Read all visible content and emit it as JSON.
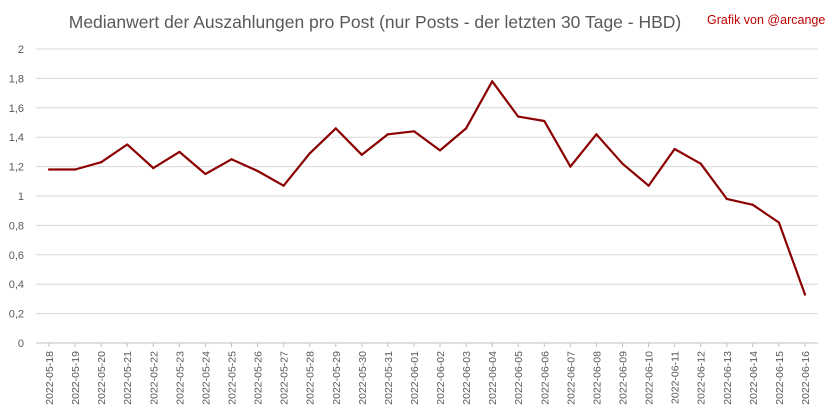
{
  "chart_data": {
    "type": "line",
    "title": "Medianwert der Auszahlungen pro Post (nur Posts - der letzten 30 Tage - HBD)",
    "credit": "Grafik von @arcange",
    "xlabel": "",
    "ylabel": "",
    "ylim": [
      0,
      2
    ],
    "yticks": [
      "0",
      "0,2",
      "0,4",
      "0,6",
      "0,8",
      "1",
      "1,2",
      "1,4",
      "1,6",
      "1,8",
      "2"
    ],
    "grid": true,
    "legend": "none",
    "categories": [
      "2022-05-18",
      "2022-05-19",
      "2022-05-20",
      "2022-05-21",
      "2022-05-22",
      "2022-05-23",
      "2022-05-24",
      "2022-05-25",
      "2022-05-26",
      "2022-05-27",
      "2022-05-28",
      "2022-05-29",
      "2022-05-30",
      "2022-05-31",
      "2022-06-01",
      "2022-06-02",
      "2022-06-03",
      "2022-06-04",
      "2022-06-05",
      "2022-06-06",
      "2022-06-07",
      "2022-06-08",
      "2022-06-09",
      "2022-06-10",
      "2022-06-11",
      "2022-06-12",
      "2022-06-13",
      "2022-06-14",
      "2022-06-15",
      "2022-06-16"
    ],
    "series": [
      {
        "color": "#8b0000",
        "values": [
          1.18,
          1.18,
          1.23,
          1.35,
          1.19,
          1.3,
          1.15,
          1.25,
          1.17,
          1.07,
          1.29,
          1.46,
          1.28,
          1.42,
          1.44,
          1.31,
          1.46,
          1.78,
          1.54,
          1.51,
          1.2,
          1.42,
          1.22,
          1.07,
          1.32,
          1.22,
          0.98,
          0.94,
          0.82,
          0.33
        ]
      }
    ]
  }
}
